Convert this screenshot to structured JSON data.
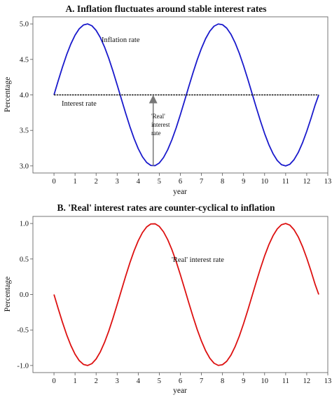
{
  "chart_data": [
    {
      "type": "line",
      "title": "A. Inflation fluctuates around stable interest rates",
      "xlabel": "year",
      "ylabel": "Percentage",
      "xlim": [
        -1,
        13
      ],
      "ylim": [
        2.9,
        5.1
      ],
      "x_ticks": [
        "0",
        "1",
        "2",
        "3",
        "4",
        "5",
        "6",
        "7",
        "8",
        "9",
        "10",
        "11",
        "12",
        "13"
      ],
      "y_ticks": [
        "3.0",
        "3.5",
        "4.0",
        "4.5",
        "5.0"
      ],
      "x": [
        0.0,
        0.2,
        0.4,
        0.6,
        0.8,
        1.0,
        1.2,
        1.4,
        1.6,
        1.8,
        2.0,
        2.2,
        2.4,
        2.6,
        2.8,
        3.0,
        3.2,
        3.4,
        3.6,
        3.8,
        4.0,
        4.2,
        4.4,
        4.6,
        4.8,
        5.0,
        5.2,
        5.4,
        5.6,
        5.8,
        6.0,
        6.2,
        6.4,
        6.6,
        6.8,
        7.0,
        7.2,
        7.4,
        7.6,
        7.8,
        8.0,
        8.2,
        8.4,
        8.6,
        8.8,
        9.0,
        9.2,
        9.4,
        9.6,
        9.8,
        10.0,
        10.2,
        10.4,
        10.6,
        10.8,
        11.0,
        11.2,
        11.4,
        11.6,
        11.8,
        12.0,
        12.2,
        12.4,
        12.57
      ],
      "series": [
        {
          "name": "Inflation rate",
          "color": "#1a1acc",
          "values": [
            4.0,
            4.199,
            4.389,
            4.565,
            4.717,
            4.841,
            4.932,
            4.985,
            5.0,
            4.974,
            4.909,
            4.808,
            4.675,
            4.516,
            4.335,
            4.141,
            3.942,
            3.745,
            3.557,
            3.388,
            3.243,
            3.128,
            3.048,
            3.006,
            3.004,
            3.041,
            3.117,
            3.228,
            3.369,
            3.535,
            3.721,
            3.917,
            4.117,
            4.311,
            4.494,
            4.655,
            4.793,
            4.898,
            4.968,
            4.999,
            4.989,
            4.941,
            4.855,
            4.734,
            4.585,
            4.412,
            4.223,
            4.025,
            3.826,
            3.635,
            3.456,
            3.3,
            3.172,
            3.076,
            3.017,
            3.0,
            3.023,
            3.089,
            3.19,
            3.325,
            3.487,
            3.667,
            3.859,
            4.0
          ]
        },
        {
          "name": "Interest rate",
          "color": "#111111",
          "values": [
            4.0,
            4.0,
            4.0,
            4.0,
            4.0,
            4.0,
            4.0,
            4.0,
            4.0,
            4.0,
            4.0,
            4.0,
            4.0,
            4.0,
            4.0,
            4.0,
            4.0,
            4.0,
            4.0,
            4.0,
            4.0,
            4.0,
            4.0,
            4.0,
            4.0,
            4.0,
            4.0,
            4.0,
            4.0,
            4.0,
            4.0,
            4.0,
            4.0,
            4.0,
            4.0,
            4.0,
            4.0,
            4.0,
            4.0,
            4.0,
            4.0,
            4.0,
            4.0,
            4.0,
            4.0,
            4.0,
            4.0,
            4.0,
            4.0,
            4.0,
            4.0,
            4.0,
            4.0,
            4.0,
            4.0,
            4.0,
            4.0,
            4.0,
            4.0,
            4.0,
            4.0,
            4.0,
            4.0,
            4.0
          ]
        }
      ],
      "annotations": {
        "inflation_label": "Inflation rate",
        "interest_label": "Interest rate",
        "real_label_lines": [
          "'Real'",
          "interest",
          "rate"
        ],
        "arrow": {
          "x": 4.71,
          "from": 3.0,
          "to": 4.0
        }
      }
    },
    {
      "type": "line",
      "title": "B. 'Real' interest rates are counter-cyclical to inflation",
      "xlabel": "year",
      "ylabel": "Percentage",
      "xlim": [
        -1,
        13
      ],
      "ylim": [
        -1.1,
        1.1
      ],
      "x_ticks": [
        "0",
        "1",
        "2",
        "3",
        "4",
        "5",
        "6",
        "7",
        "8",
        "9",
        "10",
        "11",
        "12",
        "13"
      ],
      "y_ticks": [
        "-1.0",
        "-0.5",
        "0.0",
        "0.5",
        "1.0"
      ],
      "x": [
        0.0,
        0.2,
        0.4,
        0.6,
        0.8,
        1.0,
        1.2,
        1.4,
        1.6,
        1.8,
        2.0,
        2.2,
        2.4,
        2.6,
        2.8,
        3.0,
        3.2,
        3.4,
        3.6,
        3.8,
        4.0,
        4.2,
        4.4,
        4.6,
        4.8,
        5.0,
        5.2,
        5.4,
        5.6,
        5.8,
        6.0,
        6.2,
        6.4,
        6.6,
        6.8,
        7.0,
        7.2,
        7.4,
        7.6,
        7.8,
        8.0,
        8.2,
        8.4,
        8.6,
        8.8,
        9.0,
        9.2,
        9.4,
        9.6,
        9.8,
        10.0,
        10.2,
        10.4,
        10.6,
        10.8,
        11.0,
        11.2,
        11.4,
        11.6,
        11.8,
        12.0,
        12.2,
        12.4,
        12.57
      ],
      "series": [
        {
          "name": "'Real' interest rate",
          "color": "#dd1111",
          "values": [
            0.0,
            -0.199,
            -0.389,
            -0.565,
            -0.717,
            -0.841,
            -0.932,
            -0.985,
            -1.0,
            -0.974,
            -0.909,
            -0.808,
            -0.675,
            -0.516,
            -0.335,
            -0.141,
            0.058,
            0.255,
            0.443,
            0.612,
            0.757,
            0.872,
            0.952,
            0.994,
            0.996,
            0.959,
            0.883,
            0.772,
            0.631,
            0.465,
            0.279,
            0.083,
            -0.117,
            -0.311,
            -0.494,
            -0.655,
            -0.793,
            -0.898,
            -0.968,
            -0.999,
            -0.989,
            -0.941,
            -0.855,
            -0.734,
            -0.585,
            -0.412,
            -0.223,
            -0.025,
            0.174,
            0.365,
            0.544,
            0.7,
            0.828,
            0.924,
            0.983,
            1.0,
            0.977,
            0.911,
            0.81,
            0.675,
            0.513,
            0.333,
            0.141,
            0.0
          ]
        }
      ],
      "annotations": {
        "real_label": "'Real' interest rate"
      }
    }
  ]
}
